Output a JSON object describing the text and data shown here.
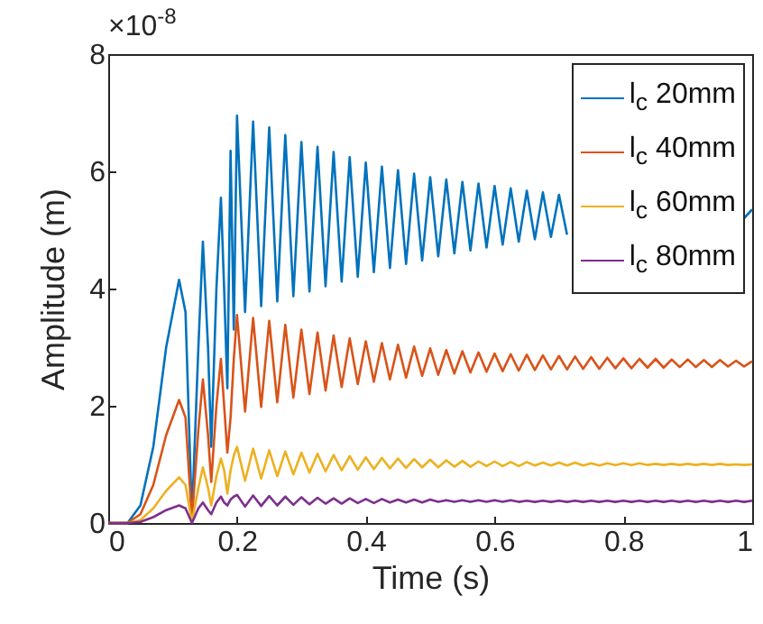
{
  "chart_data": {
    "type": "line",
    "xlabel": "Time (s)",
    "ylabel": "Amplitude (m)",
    "annotations": [
      "×10$^{-8}$"
    ],
    "xlim": [
      0,
      1
    ],
    "xticks": [
      0,
      0.2,
      0.4,
      0.6,
      0.8,
      1
    ],
    "ylim": [
      0,
      8
    ],
    "yticks": [
      0,
      2,
      4,
      6,
      8
    ],
    "grid": false,
    "legend": "top right",
    "x": [
      0,
      0.03,
      0.05,
      0.07,
      0.09,
      0.11,
      0.12,
      0.13,
      0.14,
      0.147,
      0.155,
      0.16,
      0.168,
      0.175,
      0.18,
      0.185,
      0.19,
      0.195,
      0.2,
      0.2125,
      0.225,
      0.2375,
      0.25,
      0.2625,
      0.275,
      0.2875,
      0.3,
      0.3125,
      0.325,
      0.3375,
      0.35,
      0.3625,
      0.375,
      0.3875,
      0.4,
      0.4125,
      0.425,
      0.4375,
      0.45,
      0.4625,
      0.475,
      0.4875,
      0.5,
      0.5125,
      0.525,
      0.5375,
      0.55,
      0.5625,
      0.575,
      0.5875,
      0.6,
      0.6125,
      0.625,
      0.6375,
      0.65,
      0.6625,
      0.675,
      0.6875,
      0.7,
      0.7125,
      0.725,
      0.7375,
      0.75,
      0.7625,
      0.775,
      0.7875,
      0.8,
      0.8125,
      0.825,
      0.8375,
      0.85,
      0.8625,
      0.875,
      0.8875,
      0.9,
      0.9125,
      0.925,
      0.9375,
      0.95,
      0.9625,
      0.975,
      0.9875,
      1
    ],
    "series": [
      {
        "name": "l$_{c}$ 20mm",
        "color": "#0072bd",
        "values": [
          0,
          0,
          0.3,
          1.3,
          3.0,
          4.15,
          3.6,
          0.1,
          3.0,
          4.8,
          3.0,
          1.3,
          4.0,
          5.55,
          4.0,
          2.3,
          6.35,
          3.3,
          6.95,
          3.6,
          6.85,
          3.7,
          6.75,
          3.78,
          6.62,
          3.87,
          6.5,
          3.95,
          6.42,
          4.04,
          6.33,
          4.12,
          6.24,
          4.2,
          6.15,
          4.28,
          6.08,
          4.35,
          6.02,
          4.42,
          5.96,
          4.48,
          5.9,
          4.55,
          5.86,
          4.6,
          5.82,
          4.65,
          5.79,
          4.7,
          5.75,
          4.75,
          5.71,
          4.8,
          5.67,
          4.84,
          5.64,
          4.88,
          5.6,
          4.92,
          null,
          null,
          null,
          null,
          null,
          null,
          null,
          null,
          null,
          null,
          null,
          null,
          null,
          null,
          null,
          null,
          null,
          null,
          null,
          null,
          null,
          5.2,
          5.35
        ]
      },
      {
        "name": "l$_{c}$ 40mm",
        "color": "#d95319",
        "values": [
          0,
          0,
          0.15,
          0.65,
          1.5,
          2.1,
          1.8,
          0.05,
          1.6,
          2.45,
          1.5,
          0.7,
          2.0,
          2.8,
          2.0,
          1.2,
          1.8,
          2.8,
          3.55,
          1.9,
          3.5,
          1.98,
          3.45,
          2.06,
          3.38,
          2.14,
          3.3,
          2.2,
          3.25,
          2.26,
          3.2,
          2.32,
          3.15,
          2.37,
          3.1,
          2.41,
          3.07,
          2.45,
          3.04,
          2.48,
          3.01,
          2.51,
          2.98,
          2.53,
          2.95,
          2.55,
          2.93,
          2.57,
          2.91,
          2.58,
          2.89,
          2.59,
          2.88,
          2.6,
          2.87,
          2.61,
          2.86,
          2.62,
          2.85,
          2.62,
          2.84,
          2.63,
          2.83,
          2.63,
          2.82,
          2.64,
          2.81,
          2.64,
          2.8,
          2.65,
          2.8,
          2.65,
          2.79,
          2.66,
          2.79,
          2.66,
          2.78,
          2.66,
          2.78,
          2.67,
          2.77,
          2.67,
          2.76
        ]
      },
      {
        "name": "l$_{c}$ 60mm",
        "color": "#edb120",
        "values": [
          0,
          0,
          0.05,
          0.25,
          0.55,
          0.78,
          0.65,
          0.02,
          0.6,
          0.95,
          0.6,
          0.3,
          0.8,
          1.1,
          0.9,
          0.5,
          0.9,
          1.15,
          1.3,
          0.72,
          1.27,
          0.76,
          1.24,
          0.8,
          1.22,
          0.83,
          1.2,
          0.86,
          1.18,
          0.88,
          1.16,
          0.9,
          1.14,
          0.91,
          1.12,
          0.92,
          1.11,
          0.93,
          1.1,
          0.94,
          1.09,
          0.95,
          1.08,
          0.95,
          1.07,
          0.96,
          1.06,
          0.96,
          1.05,
          0.97,
          1.05,
          0.97,
          1.04,
          0.97,
          1.04,
          0.98,
          1.03,
          0.98,
          1.03,
          0.98,
          1.03,
          0.98,
          1.02,
          0.98,
          1.02,
          0.99,
          1.02,
          0.99,
          1.02,
          0.99,
          1.01,
          0.99,
          1.01,
          0.99,
          1.01,
          0.99,
          1.01,
          0.99,
          1.01,
          0.99,
          1.0,
          0.99,
          1.0
        ]
      },
      {
        "name": "l$_{c}$ 80mm",
        "color": "#7e2f8e",
        "values": [
          0,
          0,
          0.02,
          0.1,
          0.22,
          0.3,
          0.25,
          0,
          0.25,
          0.35,
          0.22,
          0.15,
          0.35,
          0.45,
          0.35,
          0.3,
          0.4,
          0.45,
          0.48,
          0.28,
          0.47,
          0.29,
          0.46,
          0.3,
          0.45,
          0.31,
          0.44,
          0.32,
          0.43,
          0.33,
          0.42,
          0.33,
          0.42,
          0.34,
          0.41,
          0.34,
          0.41,
          0.35,
          0.4,
          0.35,
          0.4,
          0.35,
          0.4,
          0.36,
          0.39,
          0.36,
          0.39,
          0.36,
          0.39,
          0.36,
          0.39,
          0.36,
          0.39,
          0.36,
          0.38,
          0.36,
          0.38,
          0.36,
          0.38,
          0.36,
          0.38,
          0.36,
          0.38,
          0.36,
          0.38,
          0.36,
          0.38,
          0.36,
          0.38,
          0.36,
          0.38,
          0.36,
          0.38,
          0.36,
          0.38,
          0.36,
          0.38,
          0.36,
          0.38,
          0.36,
          0.38,
          0.36,
          0.38
        ]
      }
    ]
  }
}
